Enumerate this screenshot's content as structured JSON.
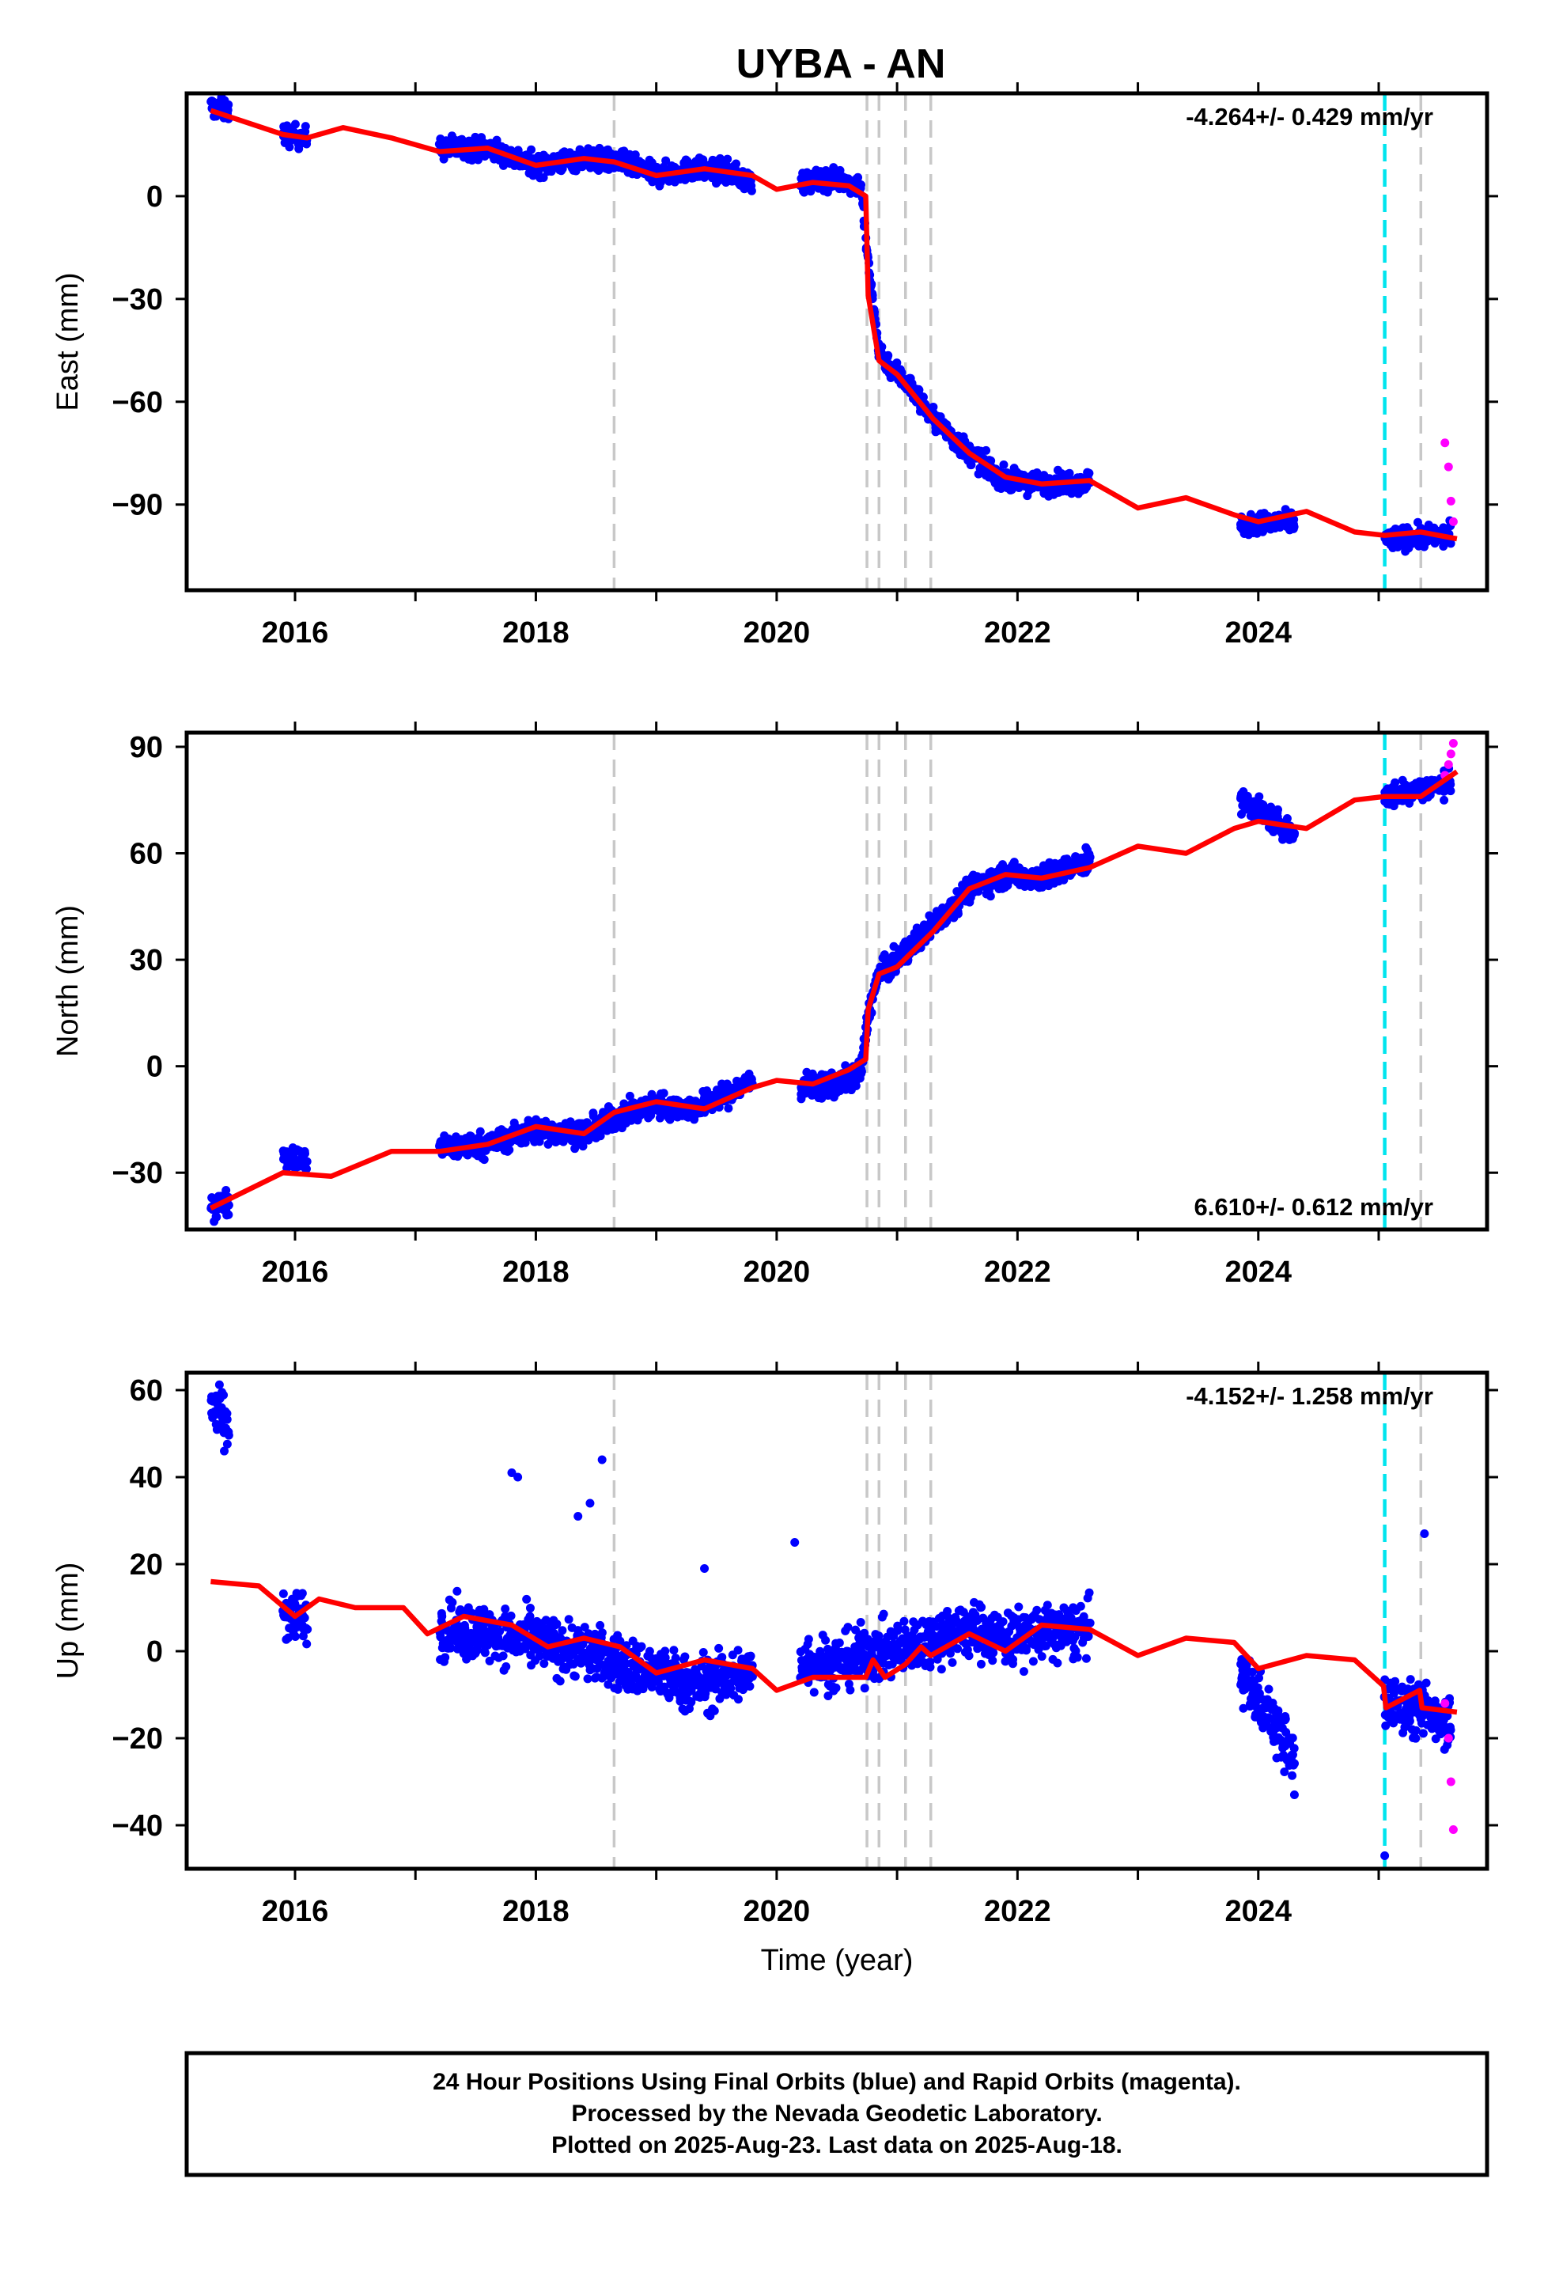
{
  "title": "UYBA - AN",
  "footer": {
    "lines": [
      "24 Hour Positions Using Final Orbits (blue) and Rapid Orbits (magenta).",
      "Processed by the Nevada Geodetic Laboratory.",
      "Plotted on 2025-Aug-23. Last data on 2025-Aug-18."
    ]
  },
  "colors": {
    "final_orbits": "#0000ff",
    "rapid_orbits": "#ff00ff",
    "model_fit": "#ff0000",
    "equipment_change": "#c8c8c8",
    "earthquake": "#00e5ee"
  },
  "chart_data": [
    {
      "type": "scatter",
      "name": "east",
      "ylabel": "East (mm)",
      "xlim": [
        2015.1,
        2025.9
      ],
      "ylim": [
        -115,
        30
      ],
      "x_ticks": [
        2016,
        2018,
        2020,
        2022,
        2024
      ],
      "y_ticks": [
        0,
        -30,
        -60,
        -90
      ],
      "rate_label": "-4.264+/- 0.429 mm/yr",
      "rate_position": "top-right",
      "equipment_change_lines": [
        2018.65,
        2020.75,
        2020.85,
        2021.07,
        2021.28,
        2025.35
      ],
      "earthquake_lines": [
        2025.05
      ],
      "final_orbit_segments": [
        {
          "x": [
            2015.3,
            2015.45
          ],
          "y": [
            26,
            25
          ]
        },
        {
          "x": [
            2015.9,
            2016.1
          ],
          "y": [
            18,
            17
          ]
        },
        {
          "x": [
            2017.2,
            2017.6,
            2018.0,
            2018.4,
            2018.7,
            2019.0,
            2019.3,
            2019.6,
            2019.8
          ],
          "y": [
            14,
            14,
            9,
            11,
            10,
            6,
            8,
            7,
            4
          ]
        },
        {
          "x": [
            2020.2,
            2020.5,
            2020.7,
            2020.76,
            2020.85,
            2020.95,
            2021.1,
            2021.3,
            2021.6,
            2021.9,
            2022.2,
            2022.6
          ],
          "y": [
            4,
            5,
            3,
            -20,
            -45,
            -50,
            -55,
            -65,
            -75,
            -83,
            -84,
            -83
          ]
        },
        {
          "x": [
            2023.85,
            2024.3
          ],
          "y": [
            -96,
            -95
          ]
        },
        {
          "x": [
            2025.05,
            2025.6
          ],
          "y": [
            -100,
            -99
          ]
        }
      ],
      "rapid_orbit_points": {
        "x": [
          2025.55,
          2025.58,
          2025.6,
          2025.62
        ],
        "y": [
          -72,
          -79,
          -89,
          -95
        ]
      },
      "model_curve": {
        "x": [
          2015.3,
          2015.9,
          2016.1,
          2016.4,
          2016.8,
          2017.2,
          2017.6,
          2018.0,
          2018.4,
          2018.65,
          2019.0,
          2019.4,
          2019.8,
          2020.0,
          2020.3,
          2020.6,
          2020.74,
          2020.76,
          2020.85,
          2021.0,
          2021.3,
          2021.6,
          2021.9,
          2022.2,
          2022.6,
          2023.0,
          2023.4,
          2023.8,
          2024.0,
          2024.4,
          2024.8,
          2025.05,
          2025.35,
          2025.65
        ],
        "y": [
          25,
          18,
          17,
          20,
          17,
          13,
          14,
          9,
          11,
          10,
          6,
          8,
          6,
          2,
          4,
          3,
          0,
          -29,
          -48,
          -52,
          -65,
          -75,
          -82,
          -84,
          -83,
          -91,
          -88,
          -93,
          -95,
          -92,
          -98,
          -99,
          -98,
          -100
        ]
      }
    },
    {
      "type": "scatter",
      "name": "north",
      "ylabel": "North (mm)",
      "xlim": [
        2015.1,
        2025.9
      ],
      "ylim": [
        -46,
        94
      ],
      "x_ticks": [
        2016,
        2018,
        2020,
        2022,
        2024
      ],
      "y_ticks": [
        90,
        60,
        30,
        0,
        -30
      ],
      "rate_label": "6.610+/- 0.612 mm/yr",
      "rate_position": "bottom-right",
      "equipment_change_lines": [
        2018.65,
        2020.75,
        2020.85,
        2021.07,
        2021.28,
        2025.35
      ],
      "earthquake_lines": [
        2025.05
      ],
      "final_orbit_segments": [
        {
          "x": [
            2015.3,
            2015.45
          ],
          "y": [
            -40,
            -38
          ]
        },
        {
          "x": [
            2015.9,
            2016.1
          ],
          "y": [
            -25,
            -27
          ]
        },
        {
          "x": [
            2017.2,
            2017.6,
            2018.0,
            2018.4,
            2018.7,
            2019.0,
            2019.3,
            2019.6,
            2019.8
          ],
          "y": [
            -23,
            -22,
            -18,
            -19,
            -14,
            -11,
            -12,
            -8,
            -4
          ]
        },
        {
          "x": [
            2020.2,
            2020.5,
            2020.7,
            2020.76,
            2020.85,
            2020.95,
            2021.1,
            2021.3,
            2021.6,
            2021.9,
            2022.2,
            2022.6
          ],
          "y": [
            -6,
            -5,
            -2,
            15,
            26,
            28,
            33,
            40,
            50,
            54,
            53,
            58
          ]
        },
        {
          "x": [
            2023.85,
            2024.1,
            2024.3
          ],
          "y": [
            75,
            70,
            65
          ]
        },
        {
          "x": [
            2025.05,
            2025.6
          ],
          "y": [
            76,
            80
          ]
        }
      ],
      "rapid_orbit_points": {
        "x": [
          2025.55,
          2025.58,
          2025.6,
          2025.62
        ],
        "y": [
          82,
          85,
          88,
          91
        ]
      },
      "model_curve": {
        "x": [
          2015.3,
          2015.9,
          2016.3,
          2016.8,
          2017.2,
          2017.6,
          2018.0,
          2018.4,
          2018.65,
          2019.0,
          2019.4,
          2019.8,
          2020.0,
          2020.3,
          2020.6,
          2020.74,
          2020.76,
          2020.85,
          2021.0,
          2021.3,
          2021.6,
          2021.9,
          2022.2,
          2022.6,
          2023.0,
          2023.4,
          2023.8,
          2024.0,
          2024.4,
          2024.8,
          2025.05,
          2025.35,
          2025.65
        ],
        "y": [
          -40,
          -30,
          -31,
          -24,
          -24,
          -22,
          -17,
          -19,
          -13,
          -10,
          -12,
          -6,
          -4,
          -5,
          -1,
          2,
          16,
          26,
          28,
          38,
          50,
          54,
          53,
          56,
          62,
          60,
          67,
          69,
          67,
          75,
          76,
          76,
          83
        ]
      }
    },
    {
      "type": "scatter",
      "name": "up",
      "ylabel": "Up (mm)",
      "xlabel": "Time (year)",
      "xlim": [
        2015.1,
        2025.9
      ],
      "ylim": [
        -50,
        64
      ],
      "x_ticks": [
        2016,
        2018,
        2020,
        2022,
        2024
      ],
      "y_ticks": [
        60,
        40,
        20,
        0,
        -20,
        -40
      ],
      "rate_label": "-4.152+/- 1.258 mm/yr",
      "rate_position": "top-right",
      "equipment_change_lines": [
        2018.65,
        2020.75,
        2020.85,
        2021.07,
        2021.28,
        2025.35
      ],
      "earthquake_lines": [
        2025.05
      ],
      "final_orbit_segments": [
        {
          "x": [
            2015.3,
            2015.45
          ],
          "y": [
            58,
            50
          ]
        },
        {
          "x": [
            2015.9,
            2016.1
          ],
          "y": [
            10,
            7
          ]
        },
        {
          "x": [
            2017.2,
            2017.6,
            2018.0,
            2018.4,
            2018.7,
            2019.0,
            2019.3,
            2019.6,
            2019.8
          ],
          "y": [
            5,
            4,
            2,
            0,
            -3,
            -5,
            -8,
            -6,
            -5
          ]
        },
        {
          "x": [
            2020.2,
            2020.5,
            2020.7,
            2021.0,
            2021.3,
            2021.6,
            2021.9,
            2022.2,
            2022.6
          ],
          "y": [
            -2,
            -3,
            -1,
            0,
            3,
            5,
            3,
            4,
            5
          ]
        },
        {
          "x": [
            2023.85,
            2024.1,
            2024.3
          ],
          "y": [
            -5,
            -15,
            -25
          ]
        },
        {
          "x": [
            2025.05,
            2025.6
          ],
          "y": [
            -12,
            -15
          ]
        }
      ],
      "outlier_points": {
        "x": [
          2017.8,
          2017.85,
          2018.35,
          2018.45,
          2018.55,
          2019.4,
          2020.15,
          2024.3,
          2025.05,
          2025.38
        ],
        "y": [
          41,
          40,
          31,
          34,
          44,
          19,
          25,
          -33,
          -47,
          27
        ]
      },
      "rapid_orbit_points": {
        "x": [
          2025.55,
          2025.58,
          2025.6,
          2025.62
        ],
        "y": [
          -12,
          -20,
          -30,
          -41
        ]
      },
      "model_curve": {
        "x": [
          2015.3,
          2015.7,
          2016.0,
          2016.2,
          2016.5,
          2016.9,
          2017.1,
          2017.4,
          2017.8,
          2018.1,
          2018.4,
          2018.7,
          2019.0,
          2019.4,
          2019.8,
          2020.0,
          2020.3,
          2020.6,
          2020.74,
          2020.8,
          2020.9,
          2021.07,
          2021.2,
          2021.28,
          2021.6,
          2021.9,
          2022.2,
          2022.6,
          2023.0,
          2023.4,
          2023.8,
          2024.0,
          2024.4,
          2024.8,
          2025.04,
          2025.06,
          2025.34,
          2025.36,
          2025.65
        ],
        "y": [
          16,
          15,
          8,
          12,
          10,
          10,
          4,
          8,
          6,
          1,
          3,
          1,
          -5,
          -2,
          -4,
          -9,
          -6,
          -6,
          -6,
          -2,
          -6,
          -3,
          1,
          -1,
          4,
          0,
          6,
          5,
          -1,
          3,
          2,
          -4,
          -1,
          -2,
          -8,
          -13,
          -9,
          -13,
          -14
        ]
      }
    }
  ]
}
